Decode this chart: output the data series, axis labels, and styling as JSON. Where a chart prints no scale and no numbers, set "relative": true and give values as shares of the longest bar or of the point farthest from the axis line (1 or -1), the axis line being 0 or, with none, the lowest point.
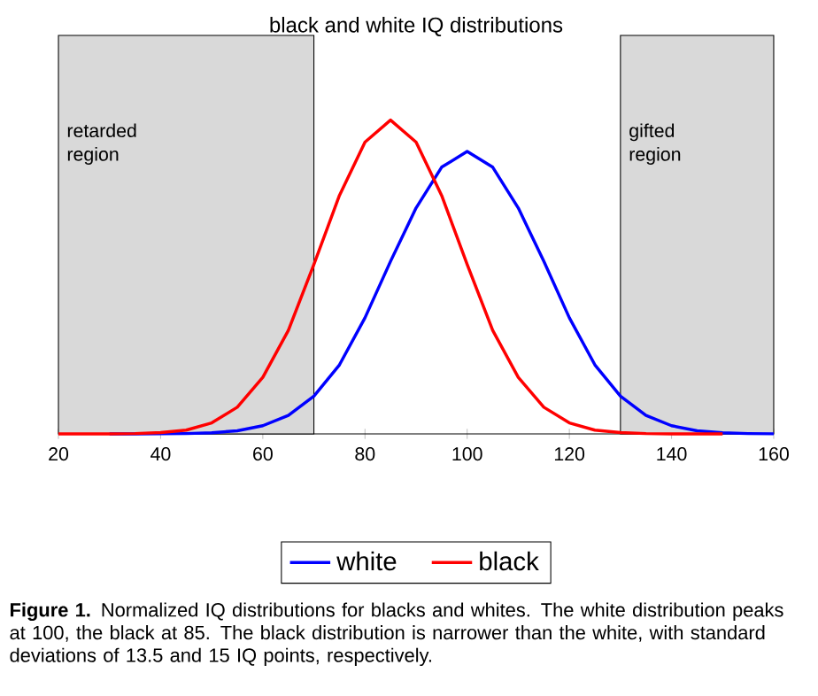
{
  "chart_data": {
    "type": "line",
    "title": "black and white IQ distributions",
    "relative": true,
    "legend": "bottom",
    "tick_labels": "x",
    "x": [
      20,
      25,
      30,
      35,
      40,
      45,
      50,
      55,
      60,
      65,
      70,
      75,
      80,
      85,
      90,
      95,
      100,
      105,
      110,
      115,
      120,
      125,
      130,
      135,
      140,
      145,
      150,
      155,
      160
    ],
    "series": [
      {
        "name": "white",
        "color": "#0000ff",
        "values": [
          null,
          null,
          0,
          0,
          0.0003,
          0.001,
          0.0035,
          0.01,
          0.026,
          0.059,
          0.12,
          0.22,
          0.37,
          0.55,
          0.72,
          0.85,
          0.9,
          0.85,
          0.72,
          0.55,
          0.37,
          0.22,
          0.12,
          0.059,
          0.026,
          0.01,
          0.0035,
          0.001,
          0.0003
        ]
      },
      {
        "name": "black",
        "color": "#ff0000",
        "values": [
          0,
          0,
          0.0002,
          0.001,
          0.004,
          0.012,
          0.035,
          0.085,
          0.18,
          0.33,
          0.54,
          0.76,
          0.93,
          1,
          0.93,
          0.76,
          0.54,
          0.33,
          0.18,
          0.085,
          0.035,
          0.012,
          0.004,
          0.001,
          0.0002,
          0,
          0,
          null,
          null
        ]
      }
    ],
    "xlim": [
      20,
      160
    ],
    "xticks": [
      20,
      40,
      60,
      80,
      100,
      120,
      140,
      160
    ],
    "bands": [
      {
        "axis": "x",
        "from": 20,
        "to": 70,
        "label": "retarded region",
        "color": "#d9d9d9"
      },
      {
        "axis": "x",
        "from": 130,
        "to": 160,
        "label": "gifted region",
        "color": "#d9d9d9"
      }
    ],
    "annotations": [
      "**Figure 1.** Normalized IQ distributions for blacks and whites. The white distribution peaks at 100, the black at 85. The black distribution is narrower than the white, with standard deviations of 13.5 and 15 IQ points, respectively."
    ]
  }
}
